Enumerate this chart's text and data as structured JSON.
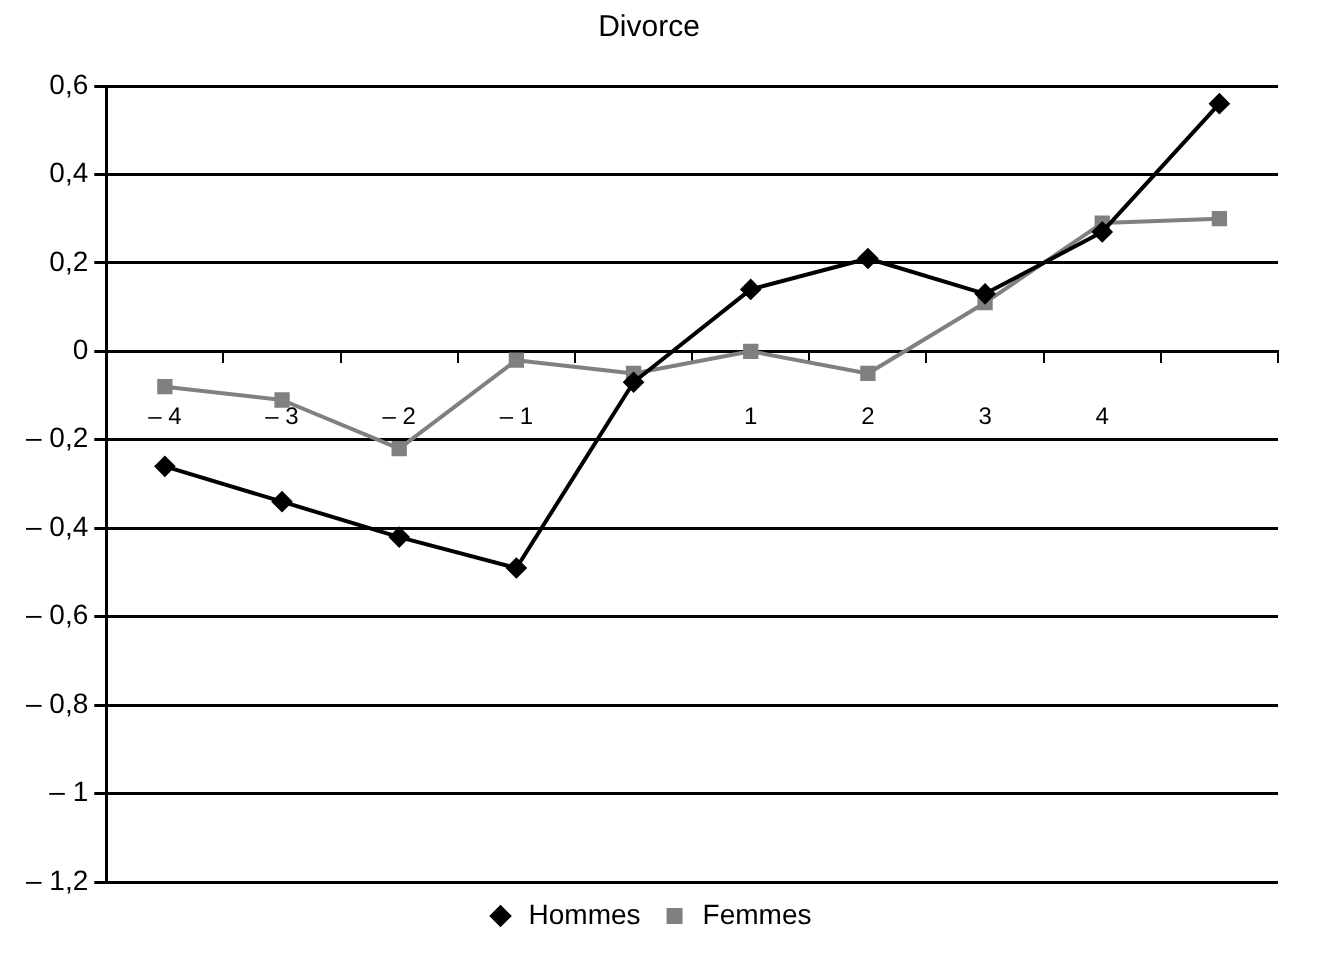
{
  "chart_data": {
    "type": "line",
    "title": "Divorce",
    "categories": [
      "– 4",
      "– 3",
      "– 2",
      "– 1",
      null,
      "1",
      "2",
      "3",
      "4",
      null
    ],
    "series": [
      {
        "name": "Hommes",
        "color": "#000000",
        "marker": "diamond",
        "values": [
          -0.26,
          -0.34,
          -0.42,
          -0.49,
          -0.07,
          0.14,
          0.21,
          0.13,
          0.27,
          0.56
        ]
      },
      {
        "name": "Femmes",
        "color": "#808080",
        "marker": "square",
        "values": [
          -0.08,
          -0.11,
          -0.22,
          -0.02,
          -0.05,
          0,
          -0.05,
          0.11,
          0.29,
          0.3
        ]
      }
    ],
    "ylim": [
      -1.2,
      0.6
    ],
    "yticks": [
      {
        "value": -1.2,
        "label": "– 1,2"
      },
      {
        "value": -1,
        "label": "– 1"
      },
      {
        "value": -0.8,
        "label": "– 0,8"
      },
      {
        "value": -0.6,
        "label": "– 0,6"
      },
      {
        "value": -0.4,
        "label": "– 0,4"
      },
      {
        "value": -0.2,
        "label": "– 0,2"
      },
      0,
      {
        "value": 0.2,
        "label": "0,2"
      },
      {
        "value": 0.4,
        "label": "0,4"
      },
      {
        "value": 0.6,
        "label": "0,6"
      }
    ],
    "grid": "y",
    "legend": "bottom",
    "line_style": "solid"
  }
}
